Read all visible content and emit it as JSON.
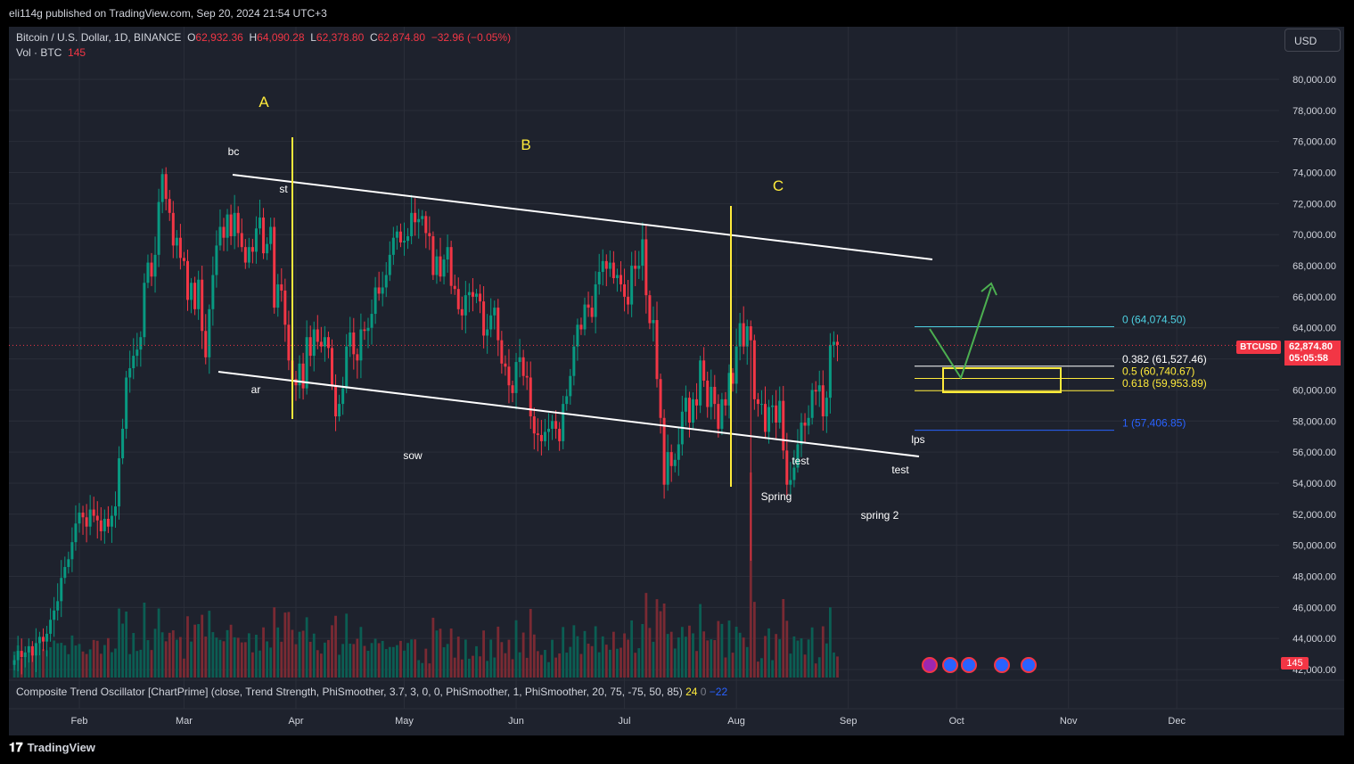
{
  "header": {
    "published": "eli114g published on TradingView.com, Sep 20, 2024 21:54 UTC+3"
  },
  "legend": {
    "symbol": "Bitcoin / U.S. Dollar, 1D, BINANCE",
    "o_label": "O",
    "o_value": "62,932.36",
    "h_label": "H",
    "h_value": "64,090.28",
    "l_label": "L",
    "l_value": "62,378.80",
    "c_label": "C",
    "c_value": "62,874.80",
    "change": "−32.96 (−0.05%)",
    "vol_label": "Vol · BTC",
    "vol_value": "145"
  },
  "currency_button": "USD",
  "oscillator": {
    "label": "Composite Trend Oscillator [ChartPrime] (close, Trend Strength, PhiSmoother, 3.7, 3, 0, 0, PhiSmoother, 1, PhiSmoother, 20, 75, -75, 50, 85)",
    "value1": "24",
    "value2": "0",
    "value3": "−22"
  },
  "price_tag": {
    "symbol": "BTCUSD",
    "price": "62,874.80",
    "countdown": "05:05:58"
  },
  "volume_tag": "145",
  "footer": {
    "brand": "TradingView"
  },
  "colors": {
    "up": "#089981",
    "down": "#f23645",
    "bg": "#1e222d",
    "grid": "#2a2e39",
    "wave_label": "#ffeb3b",
    "channel": "#ffffff",
    "arrow": "#4caf50",
    "fib_zone": "#ffeb3b"
  },
  "chart_data": {
    "type": "candlestick",
    "y_axis": {
      "min": 42000,
      "max": 80000,
      "ticks": [
        "80,000.00",
        "78,000.00",
        "76,000.00",
        "74,000.00",
        "72,000.00",
        "70,000.00",
        "68,000.00",
        "66,000.00",
        "64,000.00",
        "62,000.00",
        "60,000.00",
        "58,000.00",
        "56,000.00",
        "54,000.00",
        "52,000.00",
        "50,000.00",
        "48,000.00",
        "46,000.00",
        "44,000.00",
        "42,000.00"
      ],
      "tick_values": [
        80000,
        78000,
        76000,
        74000,
        72000,
        70000,
        68000,
        66000,
        64000,
        62000,
        60000,
        58000,
        56000,
        54000,
        52000,
        50000,
        48000,
        46000,
        44000,
        42000
      ]
    },
    "x_axis": {
      "labels": [
        "Feb",
        "Mar",
        "Apr",
        "May",
        "Jun",
        "Jul",
        "Aug",
        "Sep",
        "Oct",
        "Nov",
        "Dec"
      ],
      "label_day": [
        0,
        29,
        60,
        90,
        121,
        151,
        182,
        213,
        243,
        274,
        304
      ]
    },
    "current_price": 62874.8,
    "closes": [
      42600,
      43200,
      42800,
      43100,
      43500,
      42900,
      43700,
      44100,
      43800,
      44300,
      45200,
      45800,
      46400,
      47900,
      48600,
      49100,
      50200,
      51400,
      52100,
      51800,
      51200,
      52300,
      51900,
      51600,
      50900,
      51700,
      51200,
      51900,
      52500,
      55600,
      57500,
      60800,
      61400,
      62200,
      62600,
      63400,
      66900,
      68200,
      67300,
      68700,
      72100,
      73900,
      72300,
      71400,
      69300,
      69800,
      68500,
      68300,
      65800,
      66900,
      65200,
      67100,
      63800,
      62100,
      65200,
      67400,
      69300,
      70500,
      69800,
      71300,
      69900,
      71400,
      70100,
      69200,
      68200,
      69200,
      68900,
      70400,
      71100,
      68800,
      69400,
      70500,
      65300,
      66800,
      66400,
      64200,
      61900,
      60700,
      60300,
      61700,
      60100,
      63400,
      62200,
      63900,
      63100,
      62800,
      63400,
      62700,
      60300,
      58300,
      59100,
      60100,
      62800,
      63700,
      62300,
      61900,
      63900,
      63800,
      64000,
      64900,
      66600,
      66200,
      66600,
      67400,
      68700,
      69800,
      70200,
      69500,
      69600,
      69900,
      71400,
      70800,
      71000,
      71200,
      70100,
      69900,
      67400,
      68600,
      67300,
      68400,
      69200,
      66700,
      66500,
      65200,
      64800,
      66100,
      66300,
      66000,
      66200,
      65700,
      63500,
      63900,
      64800,
      65300,
      63200,
      61700,
      61500,
      60300,
      59800,
      61800,
      62100,
      60900,
      60800,
      58300,
      57200,
      57100,
      56700,
      57300,
      57500,
      58000,
      57500,
      56700,
      59100,
      59600,
      60900,
      62800,
      64200,
      63900,
      65500,
      65300,
      64700,
      66800,
      67600,
      68300,
      67800,
      68200,
      67200,
      67400,
      66800,
      66000,
      65500,
      68000,
      67800,
      68000,
      69700,
      66100,
      64300,
      64500,
      60700,
      58200,
      53900,
      56000,
      55100,
      55500,
      56500,
      58600,
      59500,
      57900,
      59400,
      59000,
      61900,
      60600,
      58900,
      60200,
      59100,
      57500,
      59400,
      59000,
      61100,
      60400,
      62800,
      64300,
      62800,
      64100,
      63200,
      59400,
      59100,
      59100,
      57300,
      58900,
      59000,
      57900,
      59300,
      56100,
      53900,
      54200,
      55000,
      56500,
      57900,
      57700,
      58200,
      60000,
      59900,
      60300,
      58300,
      59500,
      62900,
      63100,
      62900
    ],
    "annotations": {
      "waves": [
        "A",
        "B",
        "C"
      ],
      "labels": [
        "bc",
        "st",
        "ar",
        "sow",
        "Spring",
        "test",
        "spring 2",
        "test",
        "lps"
      ]
    },
    "fib_levels": [
      {
        "label": "0 (64,074.50)",
        "value": 64074.5,
        "color": "#4dd0e1"
      },
      {
        "label": "0.382 (61,527.46)",
        "value": 61527.46,
        "color": "#ffffff"
      },
      {
        "label": "0.5 (60,740.67)",
        "value": 60740.67,
        "color": "#ffeb3b"
      },
      {
        "label": "0.618 (59,953.89)",
        "value": 59953.89,
        "color": "#ffeb3b"
      },
      {
        "label": "1 (57,406.85)",
        "value": 57406.85,
        "color": "#2962ff"
      }
    ]
  }
}
